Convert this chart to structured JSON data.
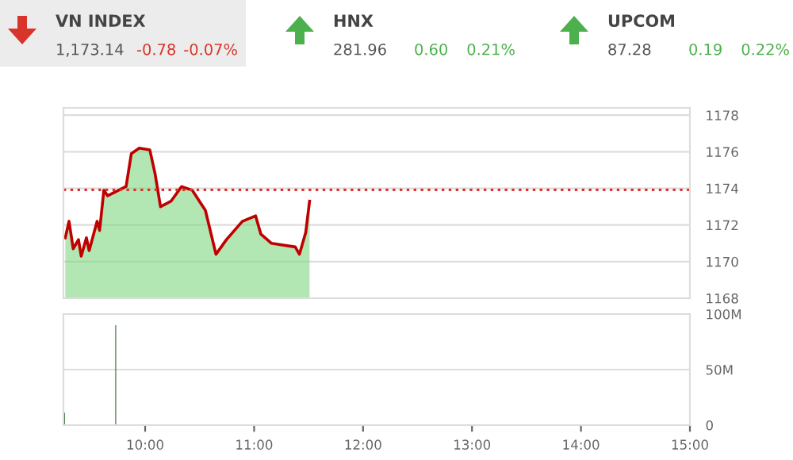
{
  "chart_data": [
    {
      "type": "area",
      "title": null,
      "annotations": [
        "VN INDEX",
        "1,173.14",
        "-0.78",
        "-0.07%",
        "HNX",
        "281.96",
        "0.60",
        "0.21%",
        "UPCOM",
        "87.28",
        "0.19",
        "0.22%"
      ],
      "series": [
        {
          "type": "area",
          "color": "#7ed67e",
          "x": [
            9.267,
            9.301,
            9.34,
            9.388,
            9.413,
            9.461,
            9.486,
            9.559,
            9.582,
            9.621,
            9.655,
            9.825,
            9.873,
            9.946,
            10.043,
            10.091,
            10.141,
            10.237,
            10.334,
            10.432,
            10.553,
            10.65,
            10.746,
            10.892,
            11.014,
            11.062,
            11.16,
            11.378,
            11.416,
            11.474,
            11.509
          ],
          "values": [
            1171.3,
            1172.2,
            1170.7,
            1171.2,
            1170.3,
            1171.3,
            1170.6,
            1172.2,
            1171.7,
            1173.9,
            1173.6,
            1174.1,
            1175.9,
            1176.2,
            1176.1,
            1174.8,
            1173.0,
            1173.3,
            1174.1,
            1173.9,
            1172.8,
            1170.4,
            1171.2,
            1172.2,
            1172.5,
            1171.5,
            1171.0,
            1170.8,
            1170.4,
            1171.6,
            1173.3
          ]
        },
        {
          "type": "line",
          "color": "#c00000",
          "x": [
            9.267,
            9.301,
            9.34,
            9.388,
            9.413,
            9.461,
            9.486,
            9.559,
            9.582,
            9.621,
            9.655,
            9.825,
            9.873,
            9.946,
            10.043,
            10.091,
            10.141,
            10.237,
            10.334,
            10.432,
            10.553,
            10.65,
            10.746,
            10.892,
            11.014,
            11.062,
            11.16,
            11.378,
            11.416,
            11.474,
            11.509
          ],
          "values": [
            1171.3,
            1172.2,
            1170.7,
            1171.2,
            1170.3,
            1171.3,
            1170.6,
            1172.2,
            1171.7,
            1173.9,
            1173.6,
            1174.1,
            1175.9,
            1176.2,
            1176.1,
            1174.8,
            1173.0,
            1173.3,
            1174.1,
            1173.9,
            1172.8,
            1170.4,
            1171.2,
            1172.2,
            1172.5,
            1171.5,
            1171.0,
            1170.8,
            1170.4,
            1171.6,
            1173.3
          ]
        }
      ],
      "xlim": [
        9.25,
        15
      ],
      "ylim": [
        1168,
        1178.4
      ],
      "yticks": [
        1168,
        1170,
        1172,
        1174,
        1176,
        1178
      ],
      "ref_lines": [
        {
          "axis": "y",
          "value": 1173.92,
          "color": "#e03030",
          "line_style": "dotted"
        }
      ],
      "grid": "y",
      "tick_labels": "y",
      "legend": false
    },
    {
      "type": "bar",
      "series": [
        {
          "color": "#2e6b2e",
          "x": [
            9.26,
            9.73
          ],
          "values": [
            11,
            90
          ]
        }
      ],
      "xlim": [
        9.25,
        15
      ],
      "xticks": [
        {
          "value": 10,
          "label": "10:00"
        },
        {
          "value": 11,
          "label": "11:00"
        },
        {
          "value": 12,
          "label": "12:00"
        },
        {
          "value": 13,
          "label": "13:00"
        },
        {
          "value": 14,
          "label": "14:00"
        },
        {
          "value": 15,
          "label": "15:00"
        }
      ],
      "ylim": [
        0,
        100
      ],
      "yticks": [
        {
          "value": 0,
          "label": "0"
        },
        {
          "value": 50,
          "label": "50M"
        },
        {
          "value": 100,
          "label": "100M"
        }
      ],
      "grid": "y",
      "legend": false
    }
  ]
}
